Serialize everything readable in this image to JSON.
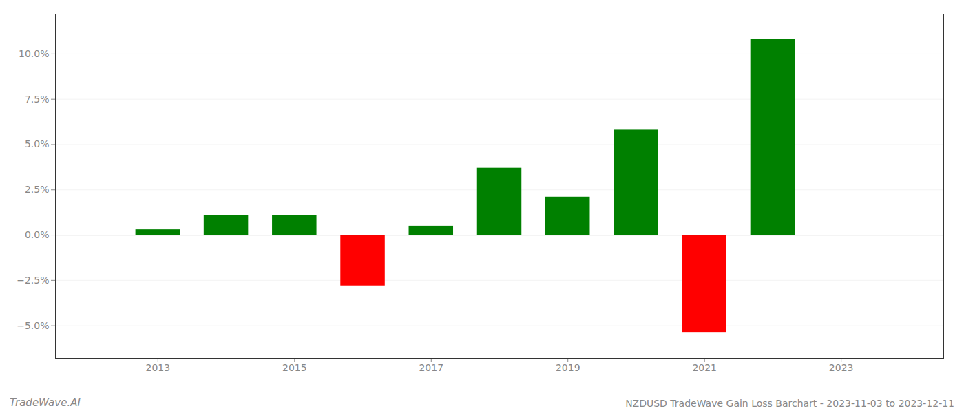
{
  "chart_data": {
    "type": "bar",
    "title": "NZDUSD TradeWave Gain Loss Barchart - 2023-11-03 to 2023-12-11",
    "annotations": [
      "TradeWave.AI"
    ],
    "x": [
      2013,
      2014,
      2015,
      2016,
      2017,
      2018,
      2019,
      2020,
      2021,
      2022
    ],
    "values": [
      0.003,
      0.011,
      0.011,
      -0.028,
      0.005,
      0.037,
      0.021,
      0.058,
      -0.054,
      0.108
    ],
    "colors": [
      "#008000",
      "#008000",
      "#008000",
      "#ff0000",
      "#008000",
      "#008000",
      "#008000",
      "#008000",
      "#ff0000",
      "#008000"
    ],
    "xlim": [
      2011.5,
      2024.5
    ],
    "xticks": [
      2013,
      2015,
      2017,
      2019,
      2021,
      2023
    ],
    "ylim": [
      -0.068,
      0.122
    ],
    "yticks": [
      {
        "value": -0.05,
        "label": "−5.0%"
      },
      {
        "value": -0.025,
        "label": "−2.5%"
      },
      {
        "value": 0.0,
        "label": "0.0%"
      },
      {
        "value": 0.025,
        "label": "2.5%"
      },
      {
        "value": 0.05,
        "label": "5.0%"
      },
      {
        "value": 0.075,
        "label": "7.5%"
      },
      {
        "value": 0.1,
        "label": "10.0%"
      }
    ],
    "grid": true
  }
}
